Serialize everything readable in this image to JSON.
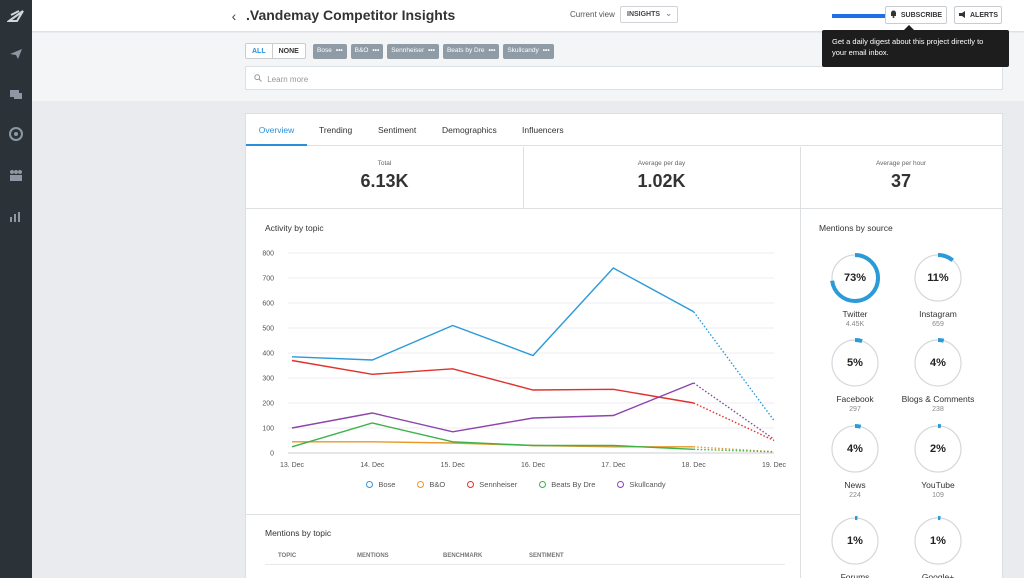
{
  "app": {
    "title": ".Vandemay Competitor Insights",
    "current_view_label": "Current view",
    "current_view_value": "INSIGHTS",
    "subscribe_label": "SUBSCRIBE",
    "alerts_label": "ALERTS",
    "tooltip_text": "Get a daily digest about this project directly to your email inbox."
  },
  "filters": {
    "all_label": "ALL",
    "none_label": "NONE",
    "topics": [
      "Bose",
      "B&O",
      "Sennheiser",
      "Beats by Dre",
      "Skullcandy"
    ],
    "learn_more_placeholder": "Learn more"
  },
  "tabs": [
    "Overview",
    "Trending",
    "Sentiment",
    "Demographics",
    "Influencers"
  ],
  "stats": [
    {
      "label": "Total",
      "value": "6.13K"
    },
    {
      "label": "Average per day",
      "value": "1.02K"
    },
    {
      "label": "Average per hour",
      "value": "37"
    }
  ],
  "activity_title": "Activity by topic",
  "chart_data": {
    "type": "line",
    "title": "Activity by topic",
    "x": [
      "13. Dec",
      "14. Dec",
      "15. Dec",
      "16. Dec",
      "17. Dec",
      "18. Dec",
      "19. Dec"
    ],
    "y_ticks": [
      "0",
      "100",
      "200",
      "300",
      "400",
      "500",
      "600",
      "700",
      "800"
    ],
    "ylim": [
      0,
      800
    ],
    "grid": true,
    "legend_position": "bottom",
    "series": [
      {
        "name": "Bose",
        "color": "#2b9ad9",
        "values": [
          385,
          372,
          510,
          390,
          740,
          565,
          130
        ]
      },
      {
        "name": "B&O",
        "color": "#e8972a",
        "values": [
          45,
          45,
          40,
          30,
          25,
          25,
          5
        ]
      },
      {
        "name": "Sennheiser",
        "color": "#e0312d",
        "values": [
          370,
          315,
          337,
          252,
          255,
          200,
          50
        ]
      },
      {
        "name": "Beats By Dre",
        "color": "#3cb24a",
        "values": [
          25,
          120,
          45,
          30,
          30,
          15,
          5
        ]
      },
      {
        "name": "Skullcandy",
        "color": "#8e44ad",
        "values": [
          100,
          160,
          85,
          140,
          150,
          280,
          55
        ]
      }
    ]
  },
  "mentions_topic": {
    "title": "Mentions by topic",
    "columns": [
      "TOPIC",
      "MENTIONS",
      "BENCHMARK",
      "SENTIMENT"
    ]
  },
  "mentions_source": {
    "title": "Mentions by source",
    "items": [
      {
        "name": "Twitter",
        "count": "4.45K",
        "pct_label": "73%",
        "pct": 0.73
      },
      {
        "name": "Instagram",
        "count": "659",
        "pct_label": "11%",
        "pct": 0.11
      },
      {
        "name": "Facebook",
        "count": "297",
        "pct_label": "5%",
        "pct": 0.05
      },
      {
        "name": "Blogs & Comments",
        "count": "238",
        "pct_label": "4%",
        "pct": 0.04
      },
      {
        "name": "News",
        "count": "224",
        "pct_label": "4%",
        "pct": 0.04
      },
      {
        "name": "YouTube",
        "count": "109",
        "pct_label": "2%",
        "pct": 0.02
      },
      {
        "name": "Forums",
        "count": "",
        "pct_label": "1%",
        "pct": 0.01
      },
      {
        "name": "Google+",
        "count": "",
        "pct_label": "1%",
        "pct": 0.01
      }
    ]
  }
}
